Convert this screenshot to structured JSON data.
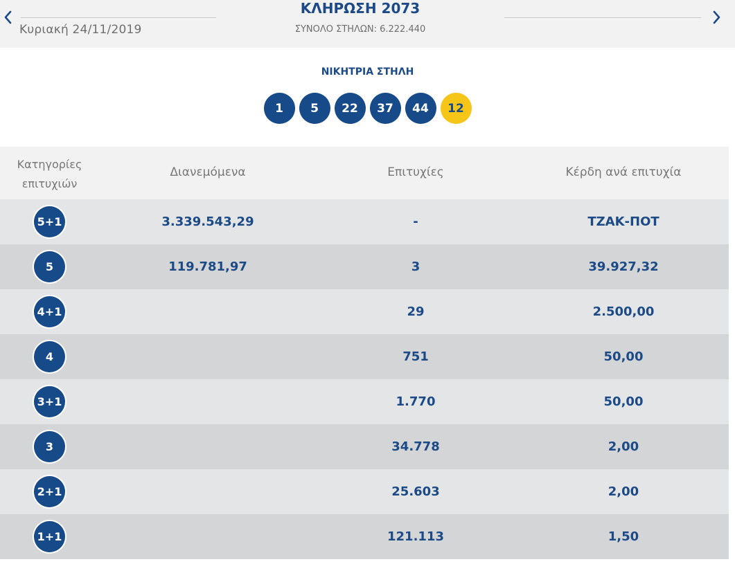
{
  "header": {
    "prev_icon": "chevron-left-icon",
    "next_icon": "chevron-right-icon",
    "date": "Κυριακή 24/11/2019",
    "title": "ΚΛΗΡΩΣΗ 2073",
    "total": "ΣΥΝΟΛΟ ΣΤΗΛΩΝ: 6.222.440"
  },
  "winning": {
    "title": "ΝΙΚΗΤΡΙΑ ΣΤΗΛΗ",
    "numbers": [
      "1",
      "5",
      "22",
      "37",
      "44"
    ],
    "joker": "12"
  },
  "table": {
    "headers": {
      "category_line1": "Κατηγορίες",
      "category_line2": "επιτυχιών",
      "distributed": "Διανεμόμενα",
      "wins": "Επιτυχίες",
      "prize": "Κέρδη ανά επιτυχία"
    },
    "rows": [
      {
        "category": "5+1",
        "distributed": "3.339.543,29",
        "wins": "-",
        "prize": "ΤΖΑΚ-ΠΟΤ"
      },
      {
        "category": "5",
        "distributed": "119.781,97",
        "wins": "3",
        "prize": "39.927,32"
      },
      {
        "category": "4+1",
        "distributed": "",
        "wins": "29",
        "prize": "2.500,00"
      },
      {
        "category": "4",
        "distributed": "",
        "wins": "751",
        "prize": "50,00"
      },
      {
        "category": "3+1",
        "distributed": "",
        "wins": "1.770",
        "prize": "50,00"
      },
      {
        "category": "3",
        "distributed": "",
        "wins": "34.778",
        "prize": "2,00"
      },
      {
        "category": "2+1",
        "distributed": "",
        "wins": "25.603",
        "prize": "2,00"
      },
      {
        "category": "1+1",
        "distributed": "",
        "wins": "121.113",
        "prize": "1,50"
      }
    ]
  },
  "colors": {
    "brand_blue": "#174a89",
    "joker_yellow": "#f5c518"
  }
}
